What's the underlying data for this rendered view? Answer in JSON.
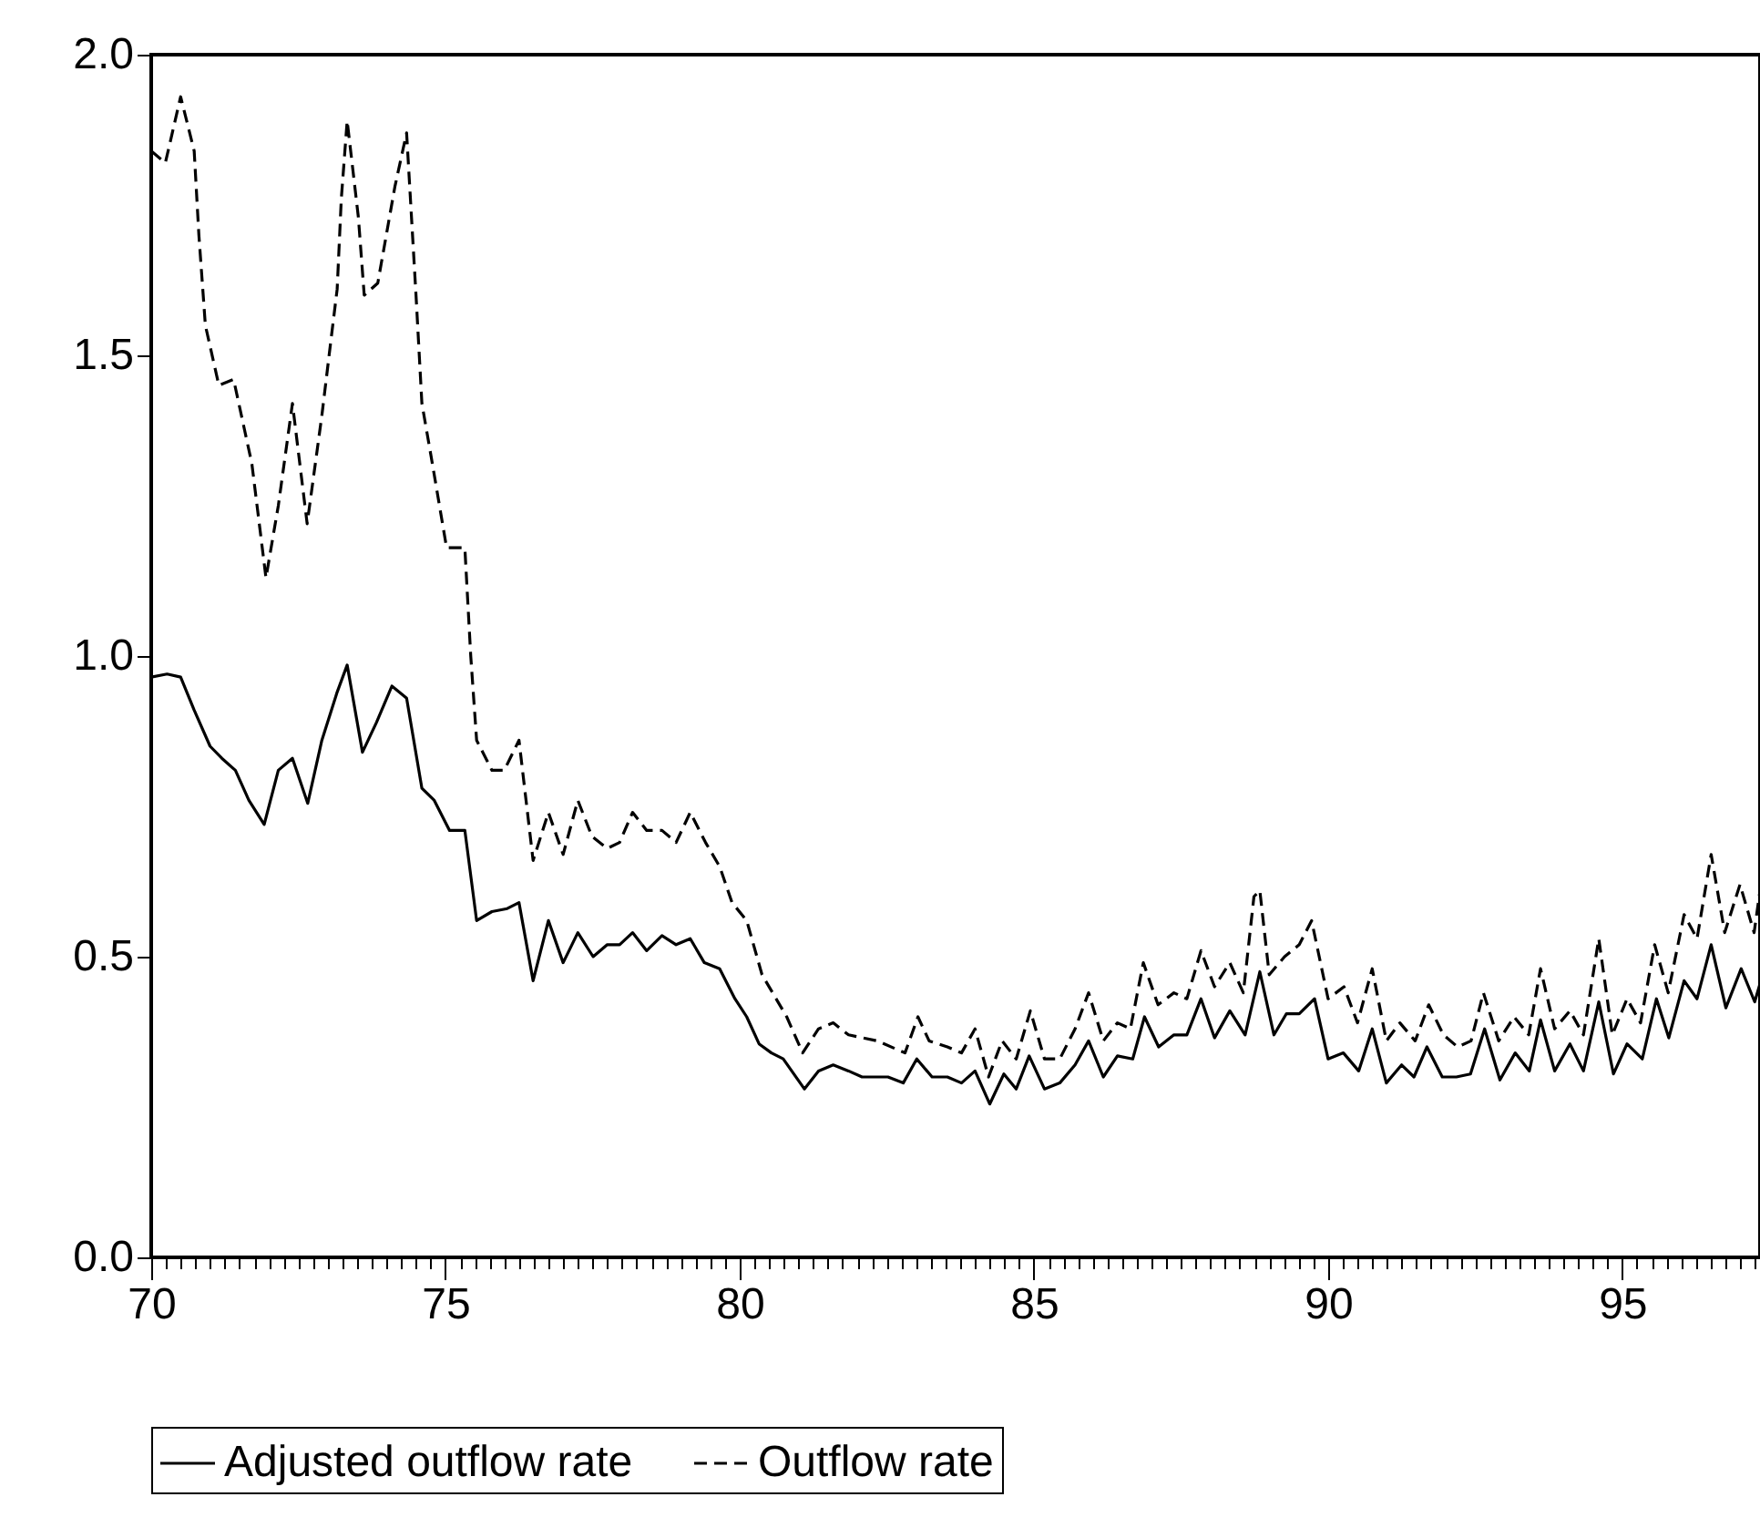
{
  "chart_data": {
    "type": "line",
    "legend": "bottom",
    "grid": false,
    "marker": "none",
    "xlim": [
      70,
      97.34
    ],
    "xticks": [
      70,
      {
        "value": 70.25,
        "label": null
      },
      {
        "value": 70.5,
        "label": null
      },
      {
        "value": 70.75,
        "label": null
      },
      {
        "value": 71,
        "label": null
      },
      {
        "value": 71.25,
        "label": null
      },
      {
        "value": 71.5,
        "label": null
      },
      {
        "value": 71.75,
        "label": null
      },
      {
        "value": 72,
        "label": null
      },
      {
        "value": 72.25,
        "label": null
      },
      {
        "value": 72.5,
        "label": null
      },
      {
        "value": 72.75,
        "label": null
      },
      {
        "value": 73,
        "label": null
      },
      {
        "value": 73.25,
        "label": null
      },
      {
        "value": 73.5,
        "label": null
      },
      {
        "value": 73.75,
        "label": null
      },
      {
        "value": 74,
        "label": null
      },
      {
        "value": 74.25,
        "label": null
      },
      {
        "value": 74.5,
        "label": null
      },
      {
        "value": 74.75,
        "label": null
      },
      75,
      {
        "value": 75.25,
        "label": null
      },
      {
        "value": 75.5,
        "label": null
      },
      {
        "value": 75.75,
        "label": null
      },
      {
        "value": 76,
        "label": null
      },
      {
        "value": 76.25,
        "label": null
      },
      {
        "value": 76.5,
        "label": null
      },
      {
        "value": 76.75,
        "label": null
      },
      {
        "value": 77,
        "label": null
      },
      {
        "value": 77.25,
        "label": null
      },
      {
        "value": 77.5,
        "label": null
      },
      {
        "value": 77.75,
        "label": null
      },
      {
        "value": 78,
        "label": null
      },
      {
        "value": 78.25,
        "label": null
      },
      {
        "value": 78.5,
        "label": null
      },
      {
        "value": 78.75,
        "label": null
      },
      {
        "value": 79,
        "label": null
      },
      {
        "value": 79.25,
        "label": null
      },
      {
        "value": 79.5,
        "label": null
      },
      {
        "value": 79.75,
        "label": null
      },
      80,
      {
        "value": 80.25,
        "label": null
      },
      {
        "value": 80.5,
        "label": null
      },
      {
        "value": 80.75,
        "label": null
      },
      {
        "value": 81,
        "label": null
      },
      {
        "value": 81.25,
        "label": null
      },
      {
        "value": 81.5,
        "label": null
      },
      {
        "value": 81.75,
        "label": null
      },
      {
        "value": 82,
        "label": null
      },
      {
        "value": 82.25,
        "label": null
      },
      {
        "value": 82.5,
        "label": null
      },
      {
        "value": 82.75,
        "label": null
      },
      {
        "value": 83,
        "label": null
      },
      {
        "value": 83.25,
        "label": null
      },
      {
        "value": 83.5,
        "label": null
      },
      {
        "value": 83.75,
        "label": null
      },
      {
        "value": 84,
        "label": null
      },
      {
        "value": 84.25,
        "label": null
      },
      {
        "value": 84.5,
        "label": null
      },
      {
        "value": 84.75,
        "label": null
      },
      85,
      {
        "value": 85.25,
        "label": null
      },
      {
        "value": 85.5,
        "label": null
      },
      {
        "value": 85.75,
        "label": null
      },
      {
        "value": 86,
        "label": null
      },
      {
        "value": 86.25,
        "label": null
      },
      {
        "value": 86.5,
        "label": null
      },
      {
        "value": 86.75,
        "label": null
      },
      {
        "value": 87,
        "label": null
      },
      {
        "value": 87.25,
        "label": null
      },
      {
        "value": 87.5,
        "label": null
      },
      {
        "value": 87.75,
        "label": null
      },
      {
        "value": 88,
        "label": null
      },
      {
        "value": 88.25,
        "label": null
      },
      {
        "value": 88.5,
        "label": null
      },
      {
        "value": 88.75,
        "label": null
      },
      {
        "value": 89,
        "label": null
      },
      {
        "value": 89.25,
        "label": null
      },
      {
        "value": 89.5,
        "label": null
      },
      {
        "value": 89.75,
        "label": null
      },
      90,
      {
        "value": 90.25,
        "label": null
      },
      {
        "value": 90.5,
        "label": null
      },
      {
        "value": 90.75,
        "label": null
      },
      {
        "value": 91,
        "label": null
      },
      {
        "value": 91.25,
        "label": null
      },
      {
        "value": 91.5,
        "label": null
      },
      {
        "value": 91.75,
        "label": null
      },
      {
        "value": 92,
        "label": null
      },
      {
        "value": 92.25,
        "label": null
      },
      {
        "value": 92.5,
        "label": null
      },
      {
        "value": 92.75,
        "label": null
      },
      {
        "value": 93,
        "label": null
      },
      {
        "value": 93.25,
        "label": null
      },
      {
        "value": 93.5,
        "label": null
      },
      {
        "value": 93.75,
        "label": null
      },
      {
        "value": 94,
        "label": null
      },
      {
        "value": 94.25,
        "label": null
      },
      {
        "value": 94.5,
        "label": null
      },
      {
        "value": 94.75,
        "label": null
      },
      95,
      {
        "value": 95.25,
        "label": null
      },
      {
        "value": 95.5,
        "label": null
      },
      {
        "value": 95.75,
        "label": null
      },
      {
        "value": 96,
        "label": null
      },
      {
        "value": 96.25,
        "label": null
      },
      {
        "value": 96.5,
        "label": null
      },
      {
        "value": 96.75,
        "label": null
      },
      {
        "value": 97,
        "label": null
      },
      {
        "value": 97.25,
        "label": null
      }
    ],
    "ylim": [
      0,
      2
    ],
    "yticks": [
      {
        "value": 0,
        "label": "0.0"
      },
      {
        "value": 0.5,
        "label": "0.5"
      },
      {
        "value": 1,
        "label": "1.0"
      },
      {
        "value": 1.5,
        "label": "1.5"
      },
      {
        "value": 2,
        "label": "2.0"
      }
    ],
    "series": [
      {
        "name": "Adjusted outflow rate",
        "color": "#000000",
        "line_style": "solid",
        "x": [
          70.0,
          70.27,
          70.5,
          70.73,
          71.0,
          71.2,
          71.43,
          71.66,
          71.92,
          72.16,
          72.4,
          72.66,
          72.9,
          73.16,
          73.33,
          73.59,
          73.83,
          74.09,
          74.34,
          74.6,
          74.81,
          75.07,
          75.33,
          75.53,
          75.79,
          76.05,
          76.25,
          76.49,
          76.75,
          77.0,
          77.25,
          77.51,
          77.75,
          77.96,
          78.18,
          78.42,
          78.68,
          78.92,
          79.16,
          79.4,
          79.66,
          79.92,
          80.12,
          80.33,
          80.54,
          80.74,
          81.1,
          81.34,
          81.59,
          81.85,
          82.08,
          82.52,
          82.78,
          83.01,
          83.27,
          83.53,
          83.77,
          84.0,
          84.25,
          84.49,
          84.7,
          84.92,
          85.18,
          85.44,
          85.7,
          85.93,
          86.18,
          86.42,
          86.68,
          86.88,
          87.12,
          87.38,
          87.6,
          87.84,
          88.07,
          88.33,
          88.59,
          88.84,
          89.08,
          89.29,
          89.51,
          89.77,
          90.0,
          90.26,
          90.52,
          90.75,
          90.99,
          91.25,
          91.46,
          91.68,
          91.94,
          92.18,
          92.42,
          92.66,
          92.92,
          93.18,
          93.42,
          93.61,
          93.85,
          94.11,
          94.34,
          94.6,
          94.85,
          95.08,
          95.34,
          95.58,
          95.79,
          96.05,
          96.27,
          96.51,
          96.76,
          97.02,
          97.25,
          97.34
        ],
        "values": [
          0.965,
          0.97,
          0.965,
          0.91,
          0.85,
          0.83,
          0.81,
          0.76,
          0.72,
          0.81,
          0.83,
          0.755,
          0.86,
          0.94,
          0.985,
          0.84,
          0.89,
          0.95,
          0.93,
          0.78,
          0.76,
          0.71,
          0.71,
          0.56,
          0.575,
          0.58,
          0.59,
          0.46,
          0.56,
          0.49,
          0.54,
          0.5,
          0.52,
          0.52,
          0.54,
          0.51,
          0.535,
          0.52,
          0.53,
          0.49,
          0.48,
          0.43,
          0.4,
          0.355,
          0.34,
          0.33,
          0.28,
          0.31,
          0.32,
          0.31,
          0.3,
          0.3,
          0.29,
          0.33,
          0.3,
          0.3,
          0.29,
          0.31,
          0.255,
          0.305,
          0.28,
          0.335,
          0.28,
          0.29,
          0.32,
          0.36,
          0.3,
          0.335,
          0.33,
          0.4,
          0.35,
          0.37,
          0.37,
          0.43,
          0.365,
          0.41,
          0.37,
          0.475,
          0.37,
          0.405,
          0.405,
          0.43,
          0.33,
          0.34,
          0.31,
          0.38,
          0.29,
          0.32,
          0.3,
          0.35,
          0.3,
          0.3,
          0.305,
          0.38,
          0.295,
          0.34,
          0.31,
          0.395,
          0.31,
          0.355,
          0.31,
          0.425,
          0.305,
          0.355,
          0.33,
          0.43,
          0.365,
          0.46,
          0.43,
          0.52,
          0.415,
          0.48,
          0.425,
          0.455
        ]
      },
      {
        "name": "Outflow rate",
        "color": "#000000",
        "line_style": "dashed",
        "x": [
          70.0,
          70.24,
          70.5,
          70.73,
          70.81,
          70.92,
          71.15,
          71.4,
          71.71,
          71.95,
          72.16,
          72.4,
          72.65,
          72.9,
          73.06,
          73.16,
          73.23,
          73.33,
          73.52,
          73.62,
          73.85,
          74.14,
          74.34,
          74.5,
          74.6,
          74.76,
          75.02,
          75.33,
          75.43,
          75.53,
          75.79,
          76.0,
          76.25,
          76.49,
          76.75,
          77.0,
          77.25,
          77.49,
          77.75,
          77.96,
          78.18,
          78.42,
          78.68,
          78.92,
          79.16,
          79.42,
          79.66,
          79.87,
          80.12,
          80.38,
          80.8,
          81.07,
          81.34,
          81.59,
          81.85,
          82.34,
          82.81,
          83.03,
          83.22,
          83.53,
          83.77,
          84.0,
          84.23,
          84.46,
          84.7,
          84.94,
          85.18,
          85.44,
          85.7,
          85.93,
          86.18,
          86.42,
          86.64,
          86.86,
          87.11,
          87.38,
          87.6,
          87.84,
          88.07,
          88.33,
          88.56,
          88.74,
          88.84,
          89.0,
          89.26,
          89.51,
          89.72,
          90.0,
          90.27,
          90.5,
          90.75,
          90.99,
          91.22,
          91.48,
          91.71,
          91.96,
          92.2,
          92.43,
          92.64,
          92.9,
          93.16,
          93.41,
          93.61,
          93.85,
          94.11,
          94.34,
          94.6,
          94.83,
          95.08,
          95.31,
          95.55,
          95.78,
          96.05,
          96.27,
          96.51,
          96.74,
          97.0,
          97.24,
          97.34
        ],
        "values": [
          1.84,
          1.82,
          1.93,
          1.84,
          1.7,
          1.55,
          1.45,
          1.46,
          1.32,
          1.13,
          1.25,
          1.42,
          1.22,
          1.4,
          1.53,
          1.61,
          1.76,
          1.89,
          1.73,
          1.6,
          1.62,
          1.78,
          1.87,
          1.6,
          1.42,
          1.33,
          1.18,
          1.18,
          1.0,
          0.86,
          0.81,
          0.81,
          0.86,
          0.66,
          0.74,
          0.67,
          0.76,
          0.7,
          0.68,
          0.69,
          0.74,
          0.71,
          0.71,
          0.69,
          0.74,
          0.69,
          0.65,
          0.59,
          0.56,
          0.47,
          0.4,
          0.34,
          0.38,
          0.39,
          0.37,
          0.36,
          0.34,
          0.4,
          0.36,
          0.35,
          0.34,
          0.38,
          0.3,
          0.36,
          0.33,
          0.41,
          0.33,
          0.33,
          0.38,
          0.44,
          0.36,
          0.39,
          0.38,
          0.49,
          0.42,
          0.44,
          0.43,
          0.51,
          0.45,
          0.49,
          0.44,
          0.6,
          0.61,
          0.47,
          0.5,
          0.52,
          0.56,
          0.43,
          0.45,
          0.39,
          0.48,
          0.36,
          0.39,
          0.36,
          0.42,
          0.37,
          0.35,
          0.36,
          0.44,
          0.36,
          0.4,
          0.37,
          0.48,
          0.38,
          0.41,
          0.37,
          0.53,
          0.37,
          0.43,
          0.39,
          0.52,
          0.44,
          0.57,
          0.53,
          0.67,
          0.54,
          0.62,
          0.54,
          0.61
        ]
      }
    ]
  }
}
